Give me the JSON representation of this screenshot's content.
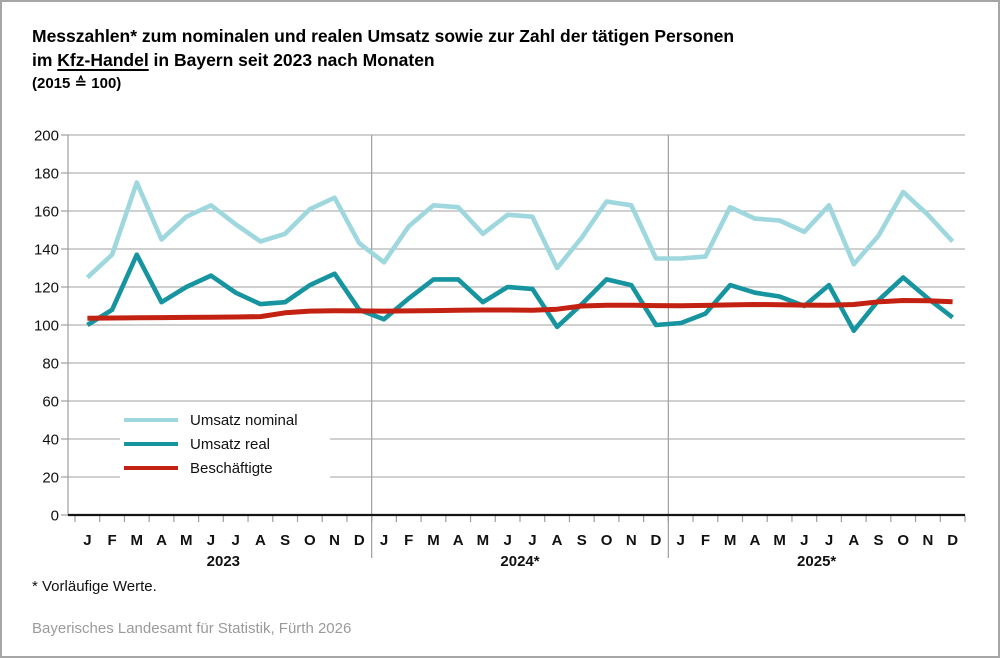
{
  "title": {
    "line1": "Messzahlen* zum nominalen und realen Umsatz sowie zur Zahl der tätigen Personen",
    "line2_pre": "im ",
    "line2_underline": "Kfz-Handel",
    "line2_post": " in Bayern seit 2023 nach Monaten",
    "line3": "(2015 ≙ 100)"
  },
  "footnote": "* Vorläufige Werte.",
  "source": "Bayerisches Landesamt für Statistik, Fürth 2026",
  "colors": {
    "nominal": "#9ed7dd",
    "real": "#1694a0",
    "employees": "#c32112",
    "grid": "#b5b5b5",
    "axis": "#141414",
    "tick": "#9e9e9e",
    "label": "#111111",
    "source_text": "#9a9a9a",
    "frame_border": "#a6a6a6"
  },
  "chart_data": {
    "type": "line",
    "title": "Messzahlen zum nominalen und realen Umsatz sowie zur Zahl der tätigen Personen im Kfz-Handel in Bayern seit 2023 nach Monaten (2015 = 100)",
    "ylim": [
      0,
      200
    ],
    "ytick_step": 20,
    "grid": true,
    "legend_position": "inside-left-bottom",
    "x_axis": {
      "month_letters": [
        "J",
        "F",
        "M",
        "A",
        "M",
        "J",
        "J",
        "A",
        "S",
        "O",
        "N",
        "D"
      ],
      "year_labels": [
        "2023",
        "2024*",
        "2025*"
      ],
      "points_per_year": 12
    },
    "series": [
      {
        "name": "Umsatz nominal",
        "color": "#9ed7dd",
        "values": [
          125,
          137,
          175,
          145,
          157,
          163,
          153,
          144,
          148,
          161,
          167,
          143,
          133,
          152,
          163,
          162,
          148,
          158,
          157,
          130,
          146,
          165,
          163,
          135,
          135,
          136,
          162,
          156,
          155,
          149,
          163,
          132,
          147,
          170,
          158,
          144
        ]
      },
      {
        "name": "Umsatz real",
        "color": "#1694a0",
        "values": [
          100,
          108,
          137,
          112,
          120,
          126,
          117,
          111,
          112,
          121,
          127,
          108,
          103,
          114,
          124,
          124,
          112,
          120,
          119,
          99,
          111,
          124,
          121,
          100,
          101,
          106,
          121,
          117,
          115,
          110,
          121,
          97,
          113,
          125,
          114,
          104
        ]
      },
      {
        "name": "Beschäftigte",
        "color": "#c32112",
        "values": [
          103.6,
          103.7,
          103.8,
          103.9,
          104.0,
          104.1,
          104.2,
          104.4,
          106.4,
          107.3,
          107.5,
          107.4,
          107.3,
          107.4,
          107.6,
          107.8,
          107.9,
          107.9,
          107.8,
          108.3,
          110.0,
          110.4,
          110.4,
          110.2,
          110.1,
          110.3,
          110.6,
          110.8,
          110.7,
          110.5,
          110.4,
          110.8,
          112.2,
          112.9,
          112.8,
          112.2
        ]
      }
    ]
  }
}
